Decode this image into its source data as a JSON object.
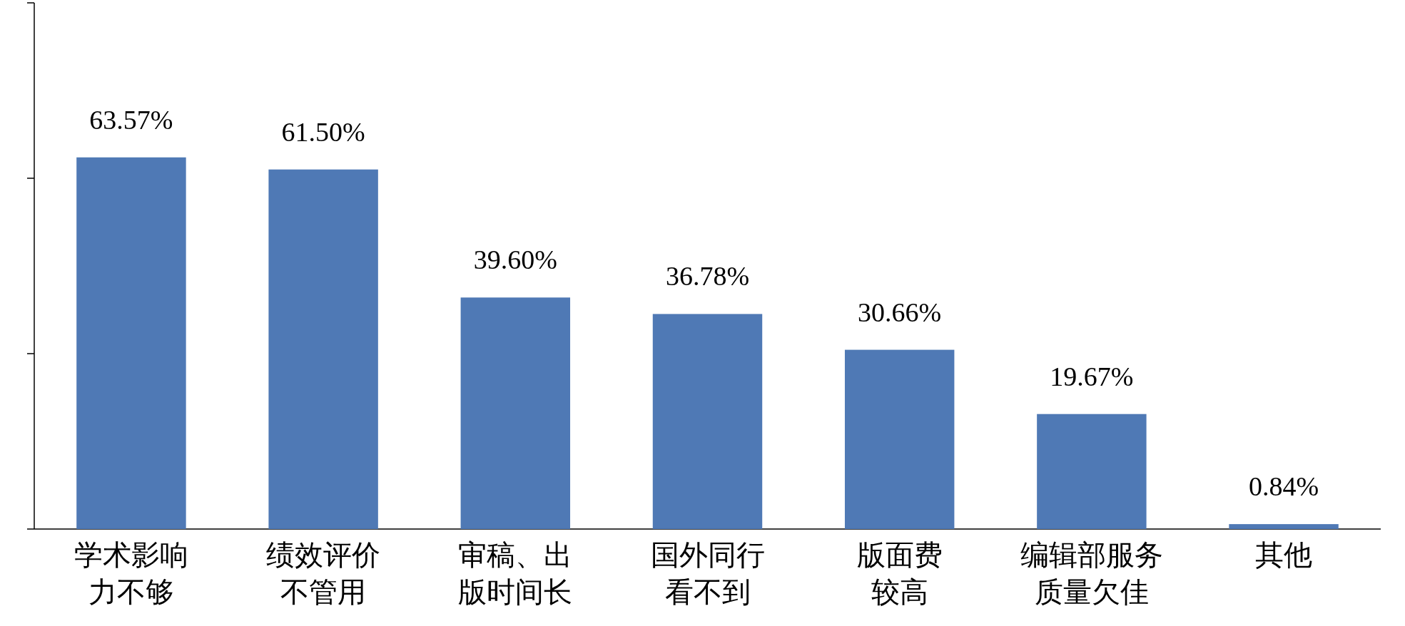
{
  "chart_data": {
    "type": "bar",
    "categories": [
      "学术影响力不够",
      "绩效评价不管用",
      "审稿、出版时间长",
      "国外同行看不到",
      "版面费较高",
      "编辑部服务质量欠佳",
      "其他"
    ],
    "values": [
      63.57,
      61.5,
      39.6,
      36.78,
      30.66,
      19.67,
      0.84
    ],
    "value_labels": [
      "63.57%",
      "61.50%",
      "39.60%",
      "36.78%",
      "30.66%",
      "19.67%",
      "0.84%"
    ],
    "color": "#4f79b5",
    "ylim": [
      0,
      90
    ],
    "yticks": [
      {
        "value": 0,
        "label": null
      },
      {
        "value": 30,
        "label": null
      },
      {
        "value": 60,
        "label": null
      },
      {
        "value": 90,
        "label": null
      }
    ],
    "tick_labels": "x"
  }
}
